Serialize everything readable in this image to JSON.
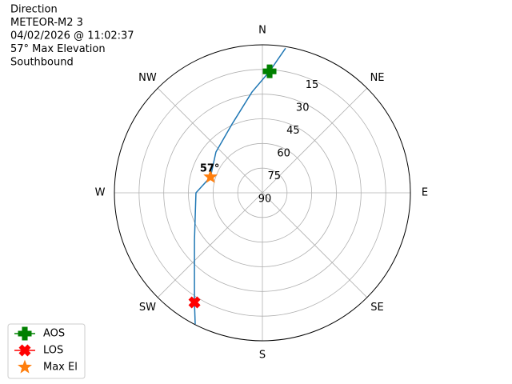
{
  "chart_data": {
    "type": "polar",
    "title": [
      "Direction",
      "METEOR-M2 3",
      "04/02/2026 @ 11:02:37",
      "57° Max Elevation",
      "Southbound"
    ],
    "xticks": [
      {
        "value": 0,
        "label": "N"
      },
      {
        "value": 45,
        "label": "NE"
      },
      {
        "value": 90,
        "label": "E"
      },
      {
        "value": 135,
        "label": "SE"
      },
      {
        "value": 180,
        "label": "S"
      },
      {
        "value": 225,
        "label": "SW"
      },
      {
        "value": 270,
        "label": "W"
      },
      {
        "value": 315,
        "label": "NW"
      }
    ],
    "ylim": [
      90,
      0
    ],
    "yticks": [
      15,
      30,
      45,
      60,
      75,
      90
    ],
    "grid": true,
    "legend": "lower left",
    "series": [
      {
        "color": "#1f77b4",
        "marker": "none",
        "x": [
          9.1,
          3.4,
          354.1,
          336.2,
          311.3,
          287,
          270,
          235.2,
          220.6,
          211.8,
          207.1
        ],
        "values": [
          1,
          16,
          28.4,
          44.3,
          52.4,
          57,
          49.6,
          39.7,
          26.5,
          11.6,
          0.3
        ]
      },
      {
        "name": "AOS",
        "color": "#008000",
        "marker": "plus",
        "x": [
          3.4
        ],
        "values": [
          16
        ]
      },
      {
        "name": "LOS",
        "color": "#ff0000",
        "marker": "x",
        "x": [
          211.8
        ],
        "values": [
          11.6
        ]
      },
      {
        "name": "Max El",
        "color": "#ff7f0e",
        "marker": "star",
        "x": [
          287
        ],
        "values": [
          57
        ]
      }
    ],
    "annotations": [
      {
        "text": "57°"
      }
    ]
  }
}
